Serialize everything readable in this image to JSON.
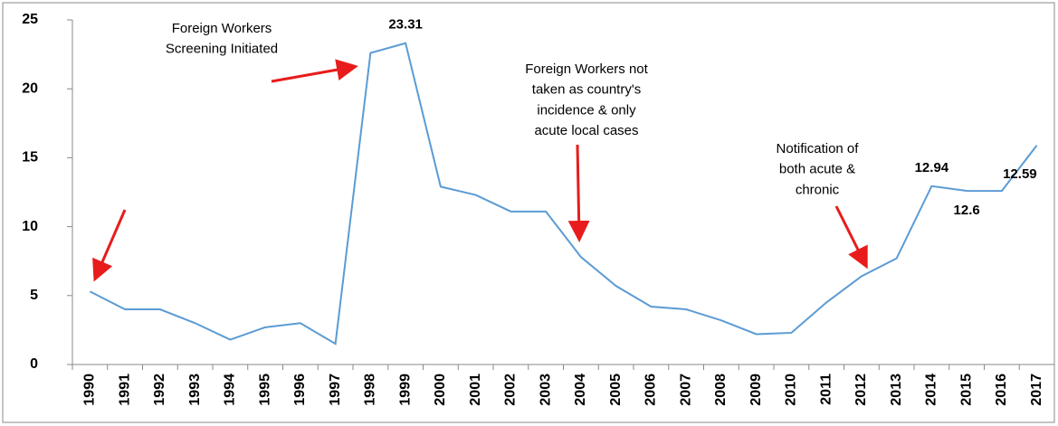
{
  "chart_data": {
    "type": "line",
    "categories": [
      "1990",
      "1991",
      "1992",
      "1993",
      "1994",
      "1995",
      "1996",
      "1997",
      "1998",
      "1999",
      "2000",
      "2001",
      "2002",
      "2003",
      "2004",
      "2005",
      "2006",
      "2007",
      "2008",
      "2009",
      "2010",
      "2011",
      "2012",
      "2013",
      "2014",
      "2015",
      "2016",
      "2017"
    ],
    "series": [
      {
        "color": "#5b9bd5",
        "values": [
          5.3,
          4.0,
          4.0,
          3.0,
          1.8,
          2.7,
          3.0,
          1.5,
          22.6,
          23.31,
          12.9,
          12.3,
          11.1,
          11.1,
          7.8,
          5.7,
          4.2,
          4.0,
          3.2,
          2.2,
          2.3,
          4.5,
          6.4,
          7.7,
          12.94,
          12.6,
          12.59,
          15.9
        ],
        "value_labels": [
          null,
          null,
          null,
          null,
          null,
          null,
          null,
          null,
          null,
          "23.31",
          null,
          null,
          null,
          null,
          null,
          null,
          null,
          null,
          null,
          null,
          null,
          null,
          null,
          null,
          "12.94",
          "12.6",
          "12.59",
          null
        ]
      }
    ],
    "ylim": [
      0,
      25
    ],
    "yticks": [
      0,
      5,
      10,
      15,
      20,
      25
    ],
    "grid": false,
    "annotations": [
      {
        "lines": [
          "Foreign Workers",
          "Screening Initiated"
        ]
      },
      {
        "lines": [
          "Foreign Workers not",
          "taken as country's",
          "incidence & only",
          "acute local cases"
        ]
      },
      {
        "lines": [
          "Notification of",
          "both acute &",
          "chronic"
        ]
      }
    ]
  }
}
